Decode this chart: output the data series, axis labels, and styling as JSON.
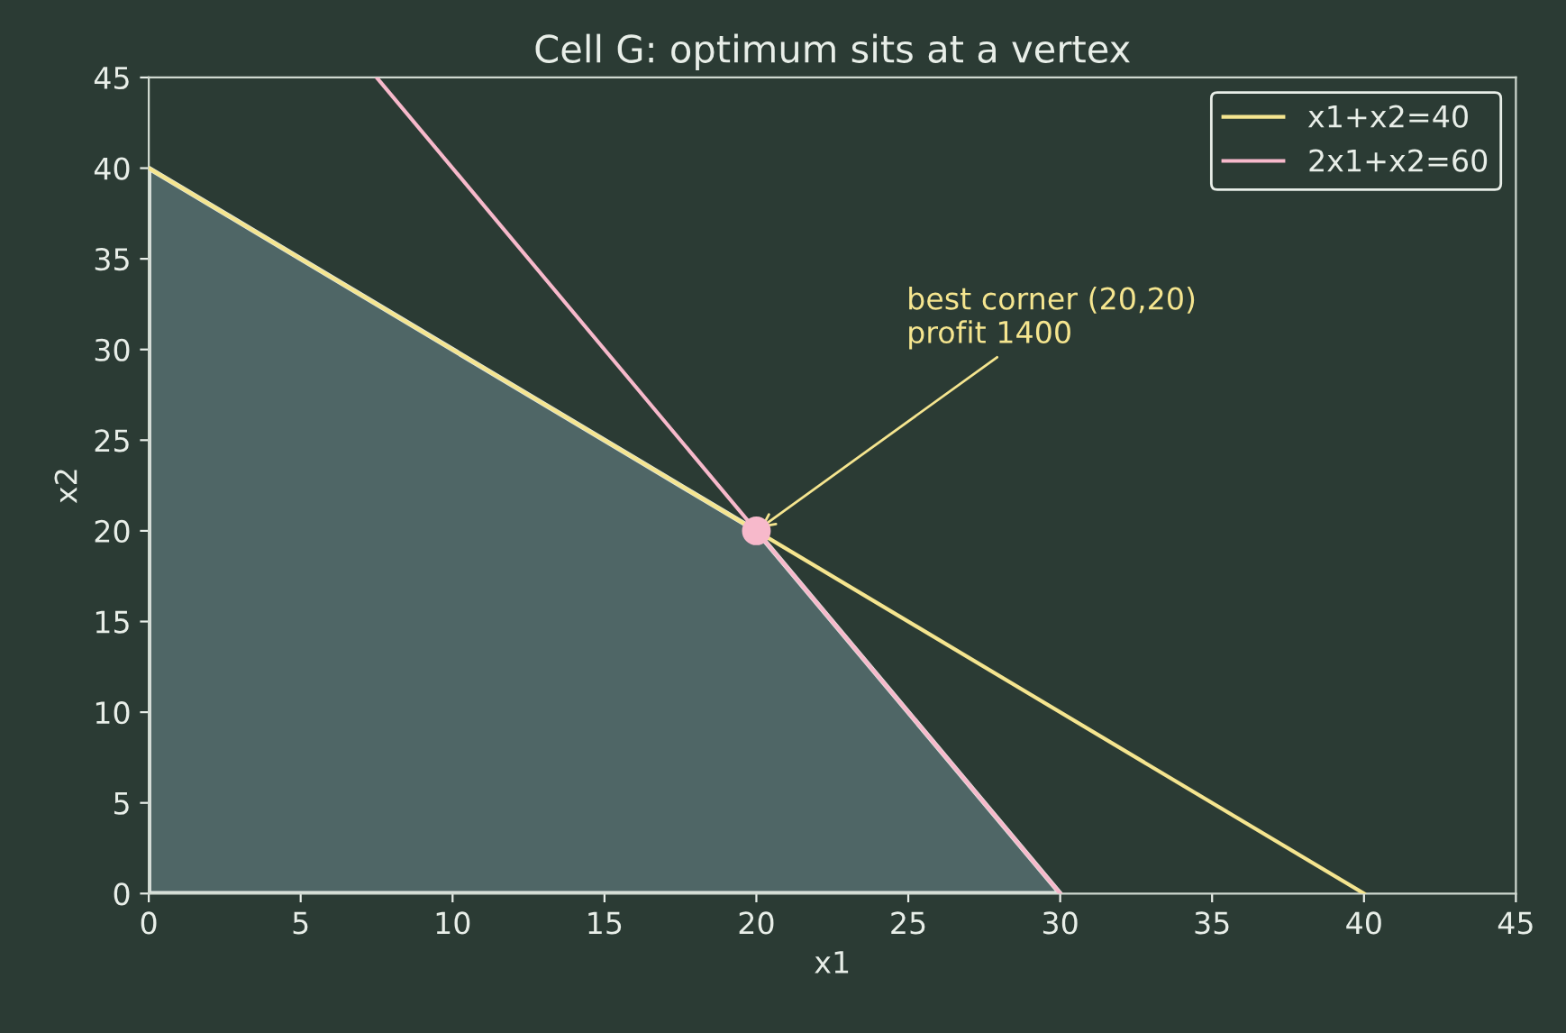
{
  "chart_data": {
    "type": "line",
    "title": "Cell G: optimum sits at a vertex",
    "xlabel": "x1",
    "ylabel": "x2",
    "xlim": [
      0,
      45
    ],
    "ylim": [
      0,
      45
    ],
    "xticks": [
      0,
      5,
      10,
      15,
      20,
      25,
      30,
      35,
      40,
      45
    ],
    "yticks": [
      0,
      5,
      10,
      15,
      20,
      25,
      30,
      35,
      40,
      45
    ],
    "grid": false,
    "legend": "top right",
    "series": [
      {
        "type": "area",
        "color": "#4f6666",
        "x": [
          0,
          20,
          30
        ],
        "values": [
          40,
          20,
          0
        ]
      },
      {
        "name": "x1+x2=40",
        "color": "#f5e58f",
        "x": [
          0,
          40
        ],
        "values": [
          40,
          0
        ]
      },
      {
        "name": "2x1+x2=60",
        "color": "#f7b9cb",
        "x": [
          7.5,
          30
        ],
        "values": [
          45,
          0
        ]
      },
      {
        "type": "scatter",
        "color": "#f7b9cb",
        "x": [
          20
        ],
        "values": [
          20
        ]
      }
    ],
    "annotations": [
      {
        "text": "best corner (20,20)\nprofit 1400",
        "x": 20,
        "y": 20
      }
    ]
  }
}
